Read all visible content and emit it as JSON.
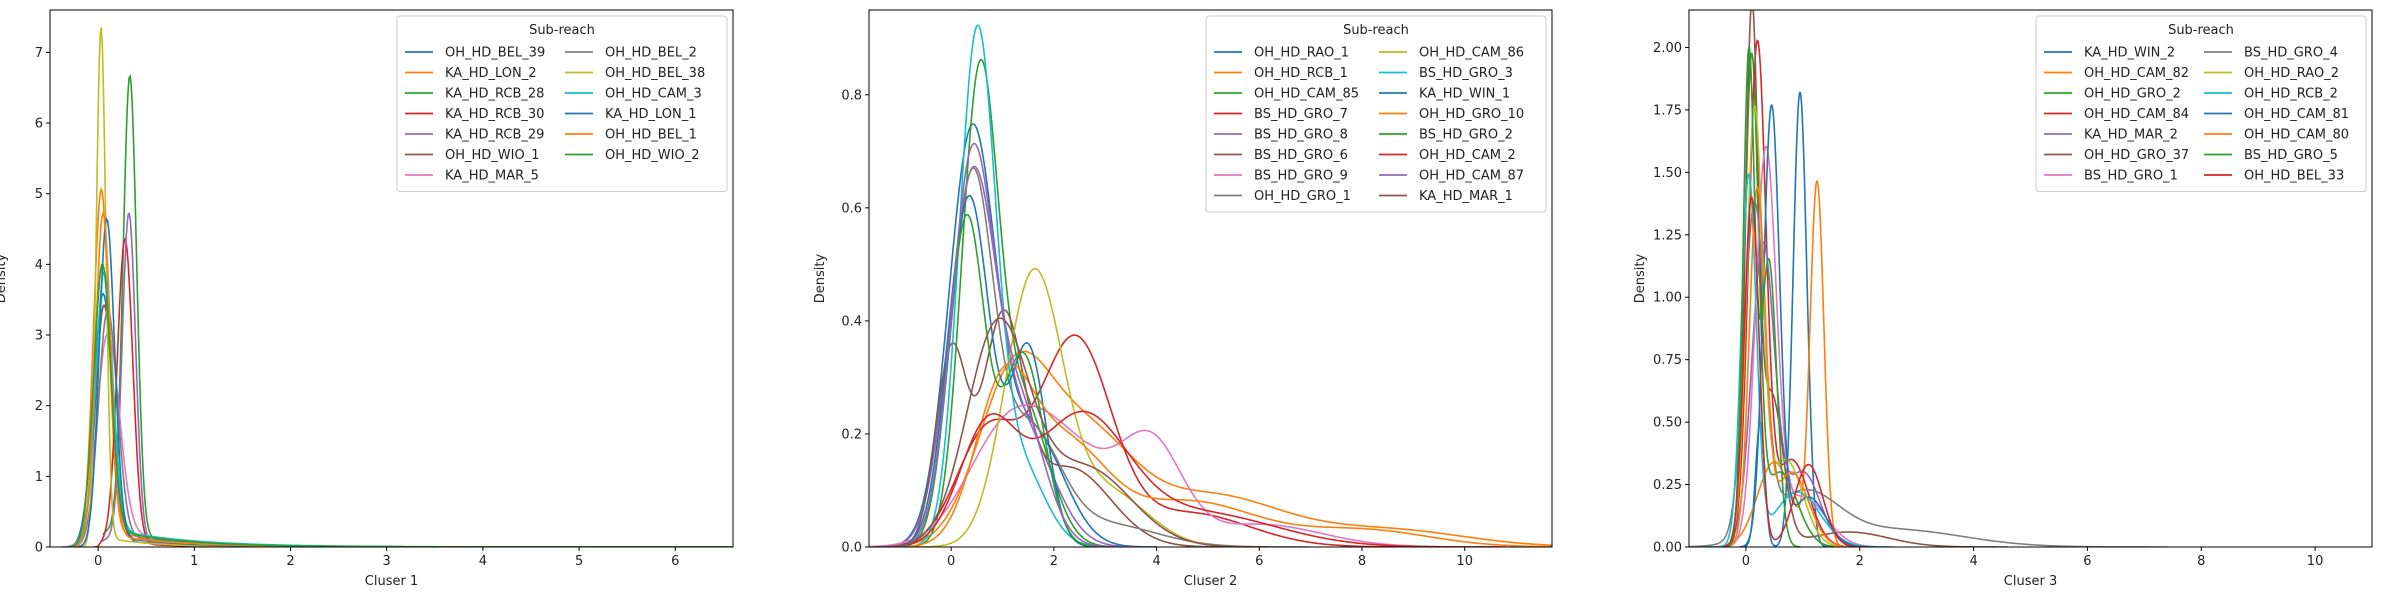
{
  "colors": [
    "#1f77b4",
    "#ff7f0e",
    "#2ca02c",
    "#d62728",
    "#9467bd",
    "#8c564b",
    "#e377c2",
    "#7f7f7f",
    "#bcbd22",
    "#17becf"
  ],
  "chart_data": [
    {
      "type": "line",
      "subtype": "kde-density",
      "xlabel": "Cluser 1",
      "ylabel": "Density",
      "xlim": [
        -0.5,
        6.6
      ],
      "ylim": [
        0,
        7.6
      ],
      "xticks": [
        0,
        1,
        2,
        3,
        4,
        5,
        6
      ],
      "yticks": [
        0,
        1,
        2,
        3,
        4,
        5,
        6,
        7
      ],
      "grid": false,
      "legend": {
        "title": "Sub-reach",
        "position": "top-right",
        "columns": 2
      },
      "series": [
        {
          "name": "OH_HD_BEL_39",
          "color": "#1f77b4",
          "peaks": [
            [
              0.05,
              3.5,
              0.1
            ]
          ],
          "tail": [
            0.15,
            0.5
          ]
        },
        {
          "name": "KA_HD_LON_2",
          "color": "#ff7f0e",
          "peaks": [
            [
              0.03,
              4.95,
              0.08
            ]
          ],
          "tail": [
            0.25,
            0.8
          ]
        },
        {
          "name": "KA_HD_RCB_28",
          "color": "#2ca02c",
          "peaks": [
            [
              0.33,
              6.5,
              0.07
            ]
          ],
          "tail": [
            0.3,
            0.6
          ]
        },
        {
          "name": "KA_HD_RCB_30",
          "color": "#d62728",
          "peaks": [
            [
              0.28,
              4.3,
              0.08
            ]
          ],
          "tail": [
            0.1,
            0.5
          ]
        },
        {
          "name": "KA_HD_RCB_29",
          "color": "#9467bd",
          "peaks": [
            [
              0.32,
              4.65,
              0.07
            ]
          ],
          "tail": [
            0.15,
            0.5
          ]
        },
        {
          "name": "OH_HD_WIO_1",
          "color": "#8c564b",
          "peaks": [
            [
              0.06,
              3.3,
              0.09
            ]
          ],
          "tail": [
            0.2,
            0.6
          ]
        },
        {
          "name": "KA_HD_MAR_5",
          "color": "#e377c2",
          "peaks": [
            [
              0.1,
              2.8,
              0.12
            ]
          ],
          "tail": [
            0.3,
            0.7
          ]
        },
        {
          "name": "OH_HD_BEL_2",
          "color": "#7f7f7f",
          "peaks": [
            [
              0.1,
              3.2,
              0.1
            ]
          ],
          "tail": [
            0.2,
            0.8
          ]
        },
        {
          "name": "OH_HD_BEL_38",
          "color": "#bcbd22",
          "peaks": [
            [
              0.03,
              7.3,
              0.05
            ]
          ],
          "tail": [
            0.15,
            0.5
          ]
        },
        {
          "name": "OH_HD_CAM_3",
          "color": "#17becf",
          "peaks": [
            [
              0.06,
              3.7,
              0.09
            ]
          ],
          "tail": [
            0.3,
            0.8
          ]
        },
        {
          "name": "KA_HD_LON_1",
          "color": "#1f77b4",
          "peaks": [
            [
              0.09,
              4.5,
              0.08
            ]
          ],
          "tail": [
            0.2,
            0.6
          ]
        },
        {
          "name": "OH_HD_BEL_1",
          "color": "#ff7f0e",
          "peaks": [
            [
              0.05,
              4.6,
              0.08
            ]
          ],
          "tail": [
            0.2,
            0.7
          ]
        },
        {
          "name": "OH_HD_WIO_2",
          "color": "#2ca02c",
          "peaks": [
            [
              0.04,
              3.85,
              0.09
            ]
          ],
          "tail": [
            0.3,
            0.7
          ]
        }
      ]
    },
    {
      "type": "line",
      "subtype": "kde-density",
      "xlabel": "Cluser 2",
      "ylabel": "Density",
      "xlim": [
        -1.6,
        11.7
      ],
      "ylim": [
        0,
        0.95
      ],
      "xticks": [
        0,
        2,
        4,
        6,
        8,
        10
      ],
      "yticks": [
        0.0,
        0.2,
        0.4,
        0.6,
        0.8
      ],
      "grid": false,
      "legend": {
        "title": "Sub-reach",
        "position": "top-right",
        "columns": 2
      },
      "series": [
        {
          "name": "OH_HD_RAO_1",
          "color": "#1f77b4",
          "peaks": [
            [
              0.4,
              0.72,
              0.45
            ],
            [
              1.6,
              0.2,
              0.6
            ]
          ]
        },
        {
          "name": "OH_HD_RCB_1",
          "color": "#ff7f0e",
          "peaks": [
            [
              1.2,
              0.28,
              0.7
            ],
            [
              2.6,
              0.18,
              0.9
            ],
            [
              5.0,
              0.09,
              1.4
            ],
            [
              8.5,
              0.03,
              1.5
            ]
          ]
        },
        {
          "name": "OH_HD_CAM_85",
          "color": "#2ca02c",
          "peaks": [
            [
              0.55,
              0.8,
              0.35
            ],
            [
              1.4,
              0.25,
              0.5
            ]
          ]
        },
        {
          "name": "BS_HD_GRO_7",
          "color": "#d62728",
          "peaks": [
            [
              0.7,
              0.2,
              0.6
            ],
            [
              2.4,
              0.36,
              0.7
            ],
            [
              4.6,
              0.06,
              1.2
            ]
          ]
        },
        {
          "name": "BS_HD_GRO_8",
          "color": "#9467bd",
          "peaks": [
            [
              0.4,
              0.62,
              0.45
            ],
            [
              1.4,
              0.2,
              0.6
            ]
          ]
        },
        {
          "name": "BS_HD_GRO_6",
          "color": "#8c564b",
          "peaks": [
            [
              0.0,
              0.34,
              0.3
            ],
            [
              1.0,
              0.38,
              0.4
            ],
            [
              2.3,
              0.14,
              0.8
            ]
          ]
        },
        {
          "name": "BS_HD_GRO_9",
          "color": "#e377c2",
          "peaks": [
            [
              1.1,
              0.2,
              0.8
            ],
            [
              2.4,
              0.14,
              0.8
            ],
            [
              3.9,
              0.17,
              0.6
            ],
            [
              6.0,
              0.04,
              1.2
            ]
          ]
        },
        {
          "name": "OH_HD_GRO_1",
          "color": "#7f7f7f",
          "peaks": [
            [
              0.4,
              0.63,
              0.4
            ],
            [
              1.5,
              0.2,
              0.6
            ],
            [
              3.0,
              0.04,
              1.0
            ]
          ]
        },
        {
          "name": "OH_HD_CAM_86",
          "color": "#bcbd22",
          "peaks": [
            [
              1.6,
              0.47,
              0.55
            ],
            [
              3.0,
              0.1,
              0.8
            ]
          ]
        },
        {
          "name": "BS_HD_GRO_3",
          "color": "#17becf",
          "peaks": [
            [
              0.5,
              0.88,
              0.35
            ],
            [
              1.3,
              0.15,
              0.5
            ]
          ]
        },
        {
          "name": "KA_HD_WIN_1",
          "color": "#1f77b4",
          "peaks": [
            [
              0.35,
              0.62,
              0.4
            ],
            [
              1.5,
              0.35,
              0.35
            ]
          ]
        },
        {
          "name": "OH_HD_GRO_10",
          "color": "#ff7f0e",
          "peaks": [
            [
              1.0,
              0.26,
              0.55
            ],
            [
              2.2,
              0.17,
              0.8
            ],
            [
              4.6,
              0.08,
              1.3
            ],
            [
              8.0,
              0.03,
              1.3
            ]
          ]
        },
        {
          "name": "BS_HD_GRO_2",
          "color": "#2ca02c",
          "peaks": [
            [
              0.3,
              0.58,
              0.35
            ],
            [
              1.4,
              0.34,
              0.4
            ]
          ]
        },
        {
          "name": "OH_HD_CAM_2",
          "color": "#d62728",
          "peaks": [
            [
              0.7,
              0.2,
              0.55
            ],
            [
              2.5,
              0.22,
              0.9
            ],
            [
              4.8,
              0.06,
              1.5
            ]
          ]
        },
        {
          "name": "OH_HD_CAM_87",
          "color": "#9467bd",
          "peaks": [
            [
              0.4,
              0.66,
              0.4
            ],
            [
              1.3,
              0.25,
              0.5
            ]
          ]
        },
        {
          "name": "KA_HD_MAR_1",
          "color": "#8c564b",
          "peaks": [
            [
              0.9,
              0.38,
              0.6
            ],
            [
              2.6,
              0.14,
              0.9
            ]
          ]
        }
      ]
    },
    {
      "type": "line",
      "subtype": "kde-density",
      "xlabel": "Cluser 3",
      "ylabel": "Density",
      "xlim": [
        -1.0,
        11.0
      ],
      "ylim": [
        0,
        2.15
      ],
      "xticks": [
        0,
        2,
        4,
        6,
        8,
        10
      ],
      "yticks": [
        0.0,
        0.25,
        0.5,
        0.75,
        1.0,
        1.25,
        1.5,
        1.75,
        2.0
      ],
      "grid": false,
      "legend": {
        "title": "Sub-reach",
        "position": "top-right",
        "columns": 2
      },
      "series": [
        {
          "name": "KA_HD_WIN_2",
          "color": "#1f77b4",
          "peaks": [
            [
              0.25,
              0.5,
              0.08
            ],
            [
              0.95,
              1.82,
              0.12
            ]
          ]
        },
        {
          "name": "OH_HD_CAM_82",
          "color": "#ff7f0e",
          "peaks": [
            [
              0.5,
              0.34,
              0.3
            ],
            [
              1.25,
              1.45,
              0.12
            ]
          ]
        },
        {
          "name": "OH_HD_GRO_2",
          "color": "#2ca02c",
          "peaks": [
            [
              0.1,
              1.9,
              0.12
            ],
            [
              0.6,
              0.3,
              0.3
            ]
          ]
        },
        {
          "name": "OH_HD_CAM_84",
          "color": "#d62728",
          "peaks": [
            [
              0.2,
              1.98,
              0.15
            ],
            [
              0.8,
              0.35,
              0.3
            ]
          ]
        },
        {
          "name": "KA_HD_MAR_2",
          "color": "#9467bd",
          "peaks": [
            [
              0.3,
              1.2,
              0.2
            ],
            [
              1.0,
              0.3,
              0.3
            ]
          ]
        },
        {
          "name": "OH_HD_GRO_37",
          "color": "#8c564b",
          "peaks": [
            [
              0.1,
              2.05,
              0.11
            ],
            [
              0.45,
              0.6,
              0.2
            ],
            [
              1.8,
              0.06,
              0.7
            ]
          ]
        },
        {
          "name": "BS_HD_GRO_1",
          "color": "#e377c2",
          "peaks": [
            [
              0.35,
              1.55,
              0.18
            ],
            [
              1.0,
              0.2,
              0.4
            ]
          ]
        },
        {
          "name": "BS_HD_GRO_4",
          "color": "#7f7f7f",
          "peaks": [
            [
              0.15,
              1.3,
              0.18
            ],
            [
              1.0,
              0.2,
              0.6
            ],
            [
              2.6,
              0.07,
              1.2
            ]
          ]
        },
        {
          "name": "OH_HD_RAO_2",
          "color": "#bcbd22",
          "peaks": [
            [
              0.15,
              1.7,
              0.14
            ],
            [
              0.7,
              0.35,
              0.3
            ]
          ]
        },
        {
          "name": "OH_HD_RCB_2",
          "color": "#17becf",
          "peaks": [
            [
              0.05,
              1.47,
              0.13
            ],
            [
              0.9,
              0.22,
              0.4
            ]
          ]
        },
        {
          "name": "OH_HD_CAM_81",
          "color": "#1f77b4",
          "peaks": [
            [
              0.45,
              1.75,
              0.14
            ],
            [
              1.1,
              0.2,
              0.3
            ]
          ]
        },
        {
          "name": "OH_HD_CAM_80",
          "color": "#ff7f0e",
          "peaks": [
            [
              0.2,
              1.4,
              0.14
            ],
            [
              0.8,
              0.3,
              0.3
            ]
          ]
        },
        {
          "name": "BS_HD_GRO_5",
          "color": "#2ca02c",
          "peaks": [
            [
              0.05,
              1.95,
              0.1
            ],
            [
              0.4,
              1.15,
              0.14
            ]
          ]
        },
        {
          "name": "OH_HD_BEL_33",
          "color": "#d62728",
          "peaks": [
            [
              0.1,
              1.4,
              0.13
            ],
            [
              1.1,
              0.33,
              0.25
            ]
          ]
        }
      ]
    }
  ]
}
